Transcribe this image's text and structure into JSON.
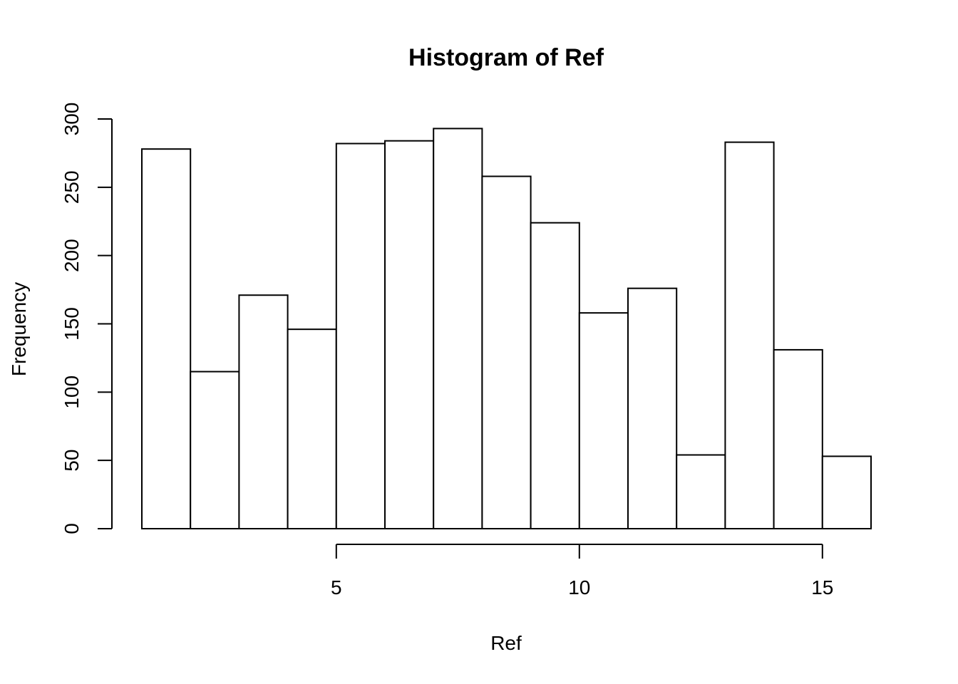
{
  "chart_data": {
    "type": "bar",
    "title": "Histogram of Ref",
    "xlabel": "Ref",
    "ylabel": "Frequency",
    "bin_edges": [
      1,
      2,
      3,
      4,
      5,
      6,
      7,
      8,
      9,
      10,
      11,
      12,
      13,
      14,
      15,
      16
    ],
    "values": [
      278,
      115,
      171,
      146,
      282,
      284,
      293,
      258,
      224,
      158,
      176,
      54,
      283,
      131,
      53
    ],
    "x_ticks": [
      5,
      10,
      15
    ],
    "y_ticks": [
      0,
      50,
      100,
      150,
      200,
      250,
      300
    ],
    "xlim": [
      1,
      16
    ],
    "ylim": [
      0,
      300
    ],
    "grid": false,
    "legend": "none"
  }
}
